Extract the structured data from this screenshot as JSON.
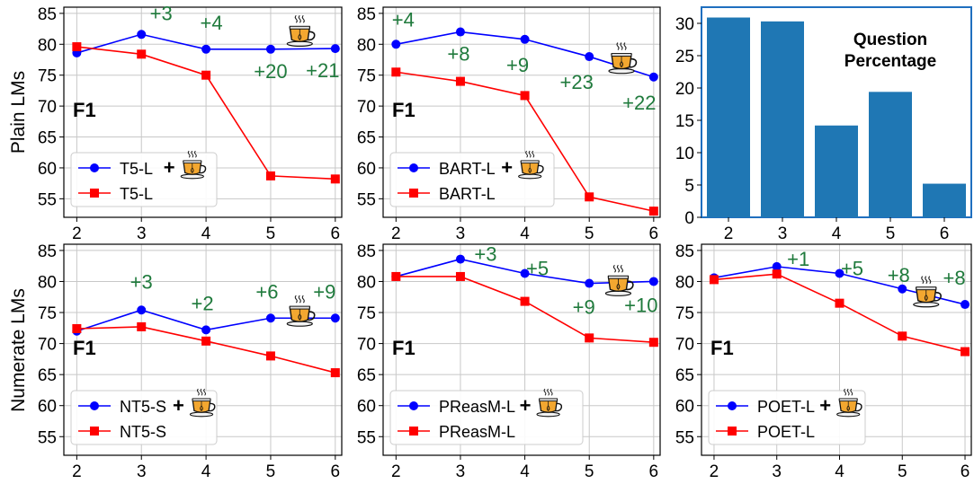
{
  "row_labels": [
    "Plain LMs",
    "Numerate LMs"
  ],
  "colors": {
    "tea": "#1f7a3c",
    "with_tea": "#0000ff",
    "without": "#ff0000",
    "bar": "#1f77b4",
    "panel_border": "#1f6fbf"
  },
  "chart_data": [
    {
      "type": "line",
      "inner_label": "F1",
      "x": [
        2,
        3,
        4,
        5,
        6
      ],
      "ylim": [
        52,
        86
      ],
      "yticks": [
        55,
        60,
        65,
        70,
        75,
        80,
        85
      ],
      "grid": true,
      "legend": "bottom-left",
      "series": [
        {
          "name": "T5-L",
          "tea_icon": true,
          "marker": "circle",
          "values": [
            78.6,
            81.6,
            79.2,
            79.2,
            79.3
          ]
        },
        {
          "name": "T5-L",
          "tea_icon": false,
          "marker": "square",
          "values": [
            79.6,
            78.4,
            75.0,
            58.7,
            58.2
          ]
        }
      ],
      "annotations": [
        "+3",
        "+4",
        "+20",
        "+21"
      ]
    },
    {
      "type": "line",
      "inner_label": "F1",
      "x": [
        2,
        3,
        4,
        5,
        6
      ],
      "ylim": [
        52,
        86
      ],
      "yticks": [
        55,
        60,
        65,
        70,
        75,
        80,
        85
      ],
      "grid": true,
      "legend": "bottom-left",
      "series": [
        {
          "name": "BART-L",
          "tea_icon": true,
          "marker": "circle",
          "values": [
            80.0,
            82.0,
            80.8,
            78.0,
            74.7
          ]
        },
        {
          "name": "BART-L",
          "tea_icon": false,
          "marker": "square",
          "values": [
            75.5,
            74.0,
            71.7,
            55.3,
            53.0
          ]
        }
      ],
      "annotations": [
        "+4",
        "+8",
        "+9",
        "+23",
        "+22"
      ]
    },
    {
      "type": "bar",
      "title": "Question Percentage",
      "categories": [
        "2",
        "3",
        "4",
        "5",
        "6"
      ],
      "values": [
        30.9,
        30.3,
        14.2,
        19.4,
        5.2
      ],
      "ylim": [
        0,
        32.5
      ],
      "yticks": [
        0,
        5,
        10,
        15,
        20,
        25,
        30
      ],
      "grid": false
    },
    {
      "type": "line",
      "inner_label": "F1",
      "x": [
        2,
        3,
        4,
        5,
        6
      ],
      "ylim": [
        52,
        86
      ],
      "yticks": [
        55,
        60,
        65,
        70,
        75,
        80,
        85
      ],
      "grid": true,
      "legend": "bottom-left",
      "series": [
        {
          "name": "NT5-S",
          "tea_icon": true,
          "marker": "circle",
          "values": [
            72.0,
            75.4,
            72.2,
            74.1,
            74.1
          ]
        },
        {
          "name": "NT5-S",
          "tea_icon": false,
          "marker": "square",
          "values": [
            72.4,
            72.7,
            70.4,
            68.0,
            65.3
          ]
        }
      ],
      "annotations": [
        "+3",
        "+2",
        "+6",
        "+9"
      ]
    },
    {
      "type": "line",
      "inner_label": "F1",
      "x": [
        2,
        3,
        4,
        5,
        6
      ],
      "ylim": [
        52,
        86
      ],
      "yticks": [
        55,
        60,
        65,
        70,
        75,
        80,
        85
      ],
      "grid": true,
      "legend": "bottom-left",
      "series": [
        {
          "name": "PReasM-L",
          "tea_icon": true,
          "marker": "circle",
          "values": [
            80.8,
            83.6,
            81.3,
            79.7,
            80.0
          ]
        },
        {
          "name": "PReasM-L",
          "tea_icon": false,
          "marker": "square",
          "values": [
            80.8,
            80.8,
            76.8,
            70.9,
            70.2
          ]
        }
      ],
      "annotations": [
        "+3",
        "+5",
        "+9",
        "+10"
      ]
    },
    {
      "type": "line",
      "inner_label": "F1",
      "x": [
        2,
        3,
        4,
        5,
        6
      ],
      "ylim": [
        52,
        86
      ],
      "yticks": [
        55,
        60,
        65,
        70,
        75,
        80,
        85
      ],
      "grid": true,
      "legend": "bottom-left",
      "series": [
        {
          "name": "POET-L",
          "tea_icon": true,
          "marker": "circle",
          "values": [
            80.6,
            82.4,
            81.3,
            78.8,
            76.3
          ]
        },
        {
          "name": "POET-L",
          "tea_icon": false,
          "marker": "square",
          "values": [
            80.3,
            81.2,
            76.5,
            71.2,
            68.7
          ]
        }
      ],
      "annotations": [
        "+1",
        "+5",
        "+8",
        "+8"
      ]
    }
  ]
}
